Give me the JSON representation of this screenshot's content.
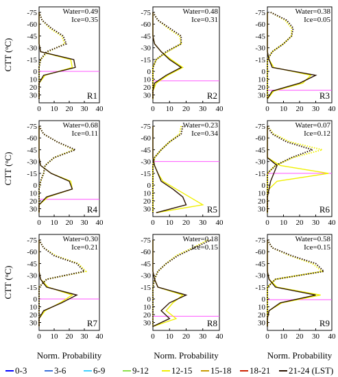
{
  "chart_data": {
    "type": "line",
    "ylabel_parts": [
      "CTT (",
      "o",
      "C)"
    ],
    "xlabel": "Norm. Probability",
    "levels": [
      -75,
      -65,
      -55,
      -45,
      -35,
      -25,
      -15,
      -5,
      5,
      15,
      25,
      35
    ],
    "xlim": [
      0,
      40
    ],
    "xticks": [
      0,
      10,
      20,
      30,
      40
    ],
    "ylim": [
      -82,
      40
    ],
    "yticks": [
      -75,
      -60,
      -45,
      -30,
      -15,
      0,
      10,
      20,
      30
    ],
    "ref_color": "#ff55ff",
    "legend": [
      {
        "name": "0-3",
        "color": "#0000ff"
      },
      {
        "name": "3-6",
        "color": "#3a6fd8"
      },
      {
        "name": "6-9",
        "color": "#40d0ff"
      },
      {
        "name": "9-12",
        "color": "#8ce04a"
      },
      {
        "name": "12-15",
        "color": "#f0f000"
      },
      {
        "name": "15-18",
        "color": "#c89a00"
      },
      {
        "name": "18-21",
        "color": "#cc2200"
      },
      {
        "name": "21-24 (LST)",
        "color": "#2a1200"
      }
    ],
    "panels": [
      {
        "label": "R1",
        "water_label": "Water=0.49",
        "ice_label": "Ice=0.35",
        "ref_line": 0,
        "series": [
          {
            "name": "12-15",
            "color": "#f0f000",
            "water": [
              0,
              0,
              0,
              0,
              0,
              1,
              21,
              22,
              4,
              0,
              0,
              0
            ],
            "ice": [
              0,
              2,
              7,
              15,
              17,
              6,
              1,
              0,
              0,
              0,
              0,
              0
            ]
          },
          {
            "name": "21-24 (LST)",
            "color": "#2a1200",
            "water": [
              0,
              0,
              0,
              0,
              0,
              1,
              23,
              24,
              3,
              0,
              0,
              0
            ],
            "ice": [
              0,
              2,
              8,
              16,
              18,
              5,
              1,
              0,
              0,
              0,
              0,
              0
            ]
          }
        ]
      },
      {
        "label": "R2",
        "water_label": "Water=0.48",
        "ice_label": "Ice=0.31",
        "ref_line": 12,
        "series": [
          {
            "name": "12-15",
            "color": "#f0f000",
            "water": [
              0,
              0,
              0,
              0,
              1,
              5,
              11,
              18,
              9,
              2,
              0,
              0
            ],
            "ice": [
              0,
              3,
              9,
              16,
              17,
              9,
              2,
              0,
              0,
              0,
              0,
              0
            ]
          },
          {
            "name": "21-24 (LST)",
            "color": "#2a1200",
            "water": [
              0,
              0,
              0,
              0,
              1,
              5,
              10,
              17,
              8,
              1,
              0,
              0
            ],
            "ice": [
              0,
              3,
              10,
              17,
              17,
              8,
              2,
              0,
              0,
              0,
              0,
              0
            ]
          }
        ]
      },
      {
        "label": "R3",
        "water_label": "Water=0.38",
        "ice_label": "Ice=0.05",
        "ref_line": 24,
        "series": [
          {
            "name": "12-15",
            "color": "#f0f000",
            "water": [
              0,
              0,
              0,
              0,
              0,
              0,
              1,
              4,
              27,
              22,
              4,
              0
            ],
            "ice": [
              2,
              11,
              15,
              15,
              10,
              3,
              0,
              0,
              0,
              0,
              0,
              0
            ]
          },
          {
            "name": "21-24 (LST)",
            "color": "#2a1200",
            "water": [
              0,
              0,
              0,
              0,
              0,
              0,
              1,
              3,
              30,
              20,
              3,
              0
            ],
            "ice": [
              2,
              12,
              16,
              15,
              10,
              3,
              0,
              0,
              0,
              0,
              0,
              0
            ]
          }
        ]
      },
      {
        "label": "R4",
        "water_label": "Water=0.68",
        "ice_label": "Ice=0.11",
        "ref_line": 18,
        "series": [
          {
            "name": "12-15",
            "color": "#f0f000",
            "water": [
              0,
              0,
              0,
              0,
              0,
              1,
              8,
              21,
              22,
              6,
              0,
              0
            ],
            "ice": [
              0,
              3,
              12,
              23,
              10,
              4,
              3,
              1,
              0,
              0,
              0,
              0
            ]
          },
          {
            "name": "21-24 (LST)",
            "color": "#2a1200",
            "water": [
              0,
              0,
              0,
              0,
              0,
              1,
              8,
              20,
              22,
              5,
              0,
              0
            ],
            "ice": [
              0,
              3,
              12,
              24,
              10,
              4,
              3,
              1,
              0,
              0,
              0,
              0
            ]
          }
        ]
      },
      {
        "label": "R5",
        "water_label": "Water=0.23",
        "ice_label": "Ice=0.34",
        "ref_line": -30,
        "series": [
          {
            "name": "12-15",
            "color": "#f0f000",
            "water": [
              0,
              0,
              0,
              0,
              0,
              1,
              3,
              6,
              14,
              22,
              30,
              2
            ],
            "ice": [
              17,
              16,
              10,
              5,
              1,
              0,
              0,
              0,
              0,
              0,
              0,
              0
            ]
          },
          {
            "name": "21-24 (LST)",
            "color": "#2a1200",
            "water": [
              0,
              0,
              0,
              0,
              0,
              1,
              3,
              5,
              12,
              18,
              20,
              2
            ],
            "ice": [
              18,
              17,
              10,
              5,
              1,
              0,
              0,
              0,
              0,
              0,
              0,
              0
            ]
          }
        ]
      },
      {
        "label": "R6",
        "water_label": "Water=0.07",
        "ice_label": "Ice=0.12",
        "ref_line": -15,
        "series": [
          {
            "name": "12-15",
            "color": "#f0f000",
            "water": [
              0,
              0,
              0,
              0,
              0,
              8,
              38,
              6,
              1,
              0,
              0,
              0
            ],
            "ice": [
              0,
              4,
              14,
              34,
              16,
              5,
              0,
              0,
              0,
              0,
              0,
              0
            ]
          },
          {
            "name": "21-24 (LST)",
            "color": "#2a1200",
            "water": [
              0,
              0,
              0,
              0,
              0,
              6,
              4,
              2,
              1,
              0,
              0,
              0
            ],
            "ice": [
              0,
              3,
              12,
              28,
              15,
              5,
              0,
              0,
              0,
              0,
              0,
              0
            ]
          }
        ]
      },
      {
        "label": "R7",
        "water_label": "Water=0.30",
        "ice_label": "Ice=0.21",
        "ref_line": 0,
        "series": [
          {
            "name": "12-15",
            "color": "#f0f000",
            "water": [
              0,
              0,
              0,
              0,
              0,
              1,
              6,
              22,
              14,
              4,
              0,
              0
            ],
            "ice": [
              0,
              3,
              11,
              26,
              31,
              5,
              0,
              0,
              0,
              0,
              0,
              0
            ]
          },
          {
            "name": "21-24 (LST)",
            "color": "#2a1200",
            "water": [
              0,
              0,
              0,
              0,
              0,
              1,
              5,
              25,
              15,
              3,
              0,
              0
            ],
            "ice": [
              0,
              3,
              10,
              25,
              30,
              5,
              0,
              0,
              0,
              0,
              0,
              0
            ]
          }
        ]
      },
      {
        "label": "R8",
        "water_label": "Water=0.18",
        "ice_label": "Ice=0.15",
        "ref_line": 22,
        "series": [
          {
            "name": "12-15",
            "color": "#f0f000",
            "water": [
              0,
              0,
              0,
              0,
              0,
              1,
              3,
              18,
              12,
              8,
              14,
              0
            ],
            "ice": [
              33,
              24,
              14,
              8,
              3,
              1,
              0,
              0,
              0,
              0,
              0,
              0
            ]
          },
          {
            "name": "21-24 (LST)",
            "color": "#2a1200",
            "water": [
              0,
              0,
              0,
              0,
              0,
              1,
              3,
              20,
              10,
              5,
              10,
              0
            ],
            "ice": [
              35,
              25,
              15,
              8,
              3,
              1,
              0,
              0,
              0,
              0,
              0,
              0
            ]
          }
        ]
      },
      {
        "label": "R9",
        "water_label": "Water=0.58",
        "ice_label": "Ice=0.15",
        "ref_line": 1,
        "series": [
          {
            "name": "12-15",
            "color": "#f0f000",
            "water": [
              0,
              0,
              0,
              0,
              0,
              1,
              6,
              33,
              9,
              1,
              0,
              0
            ],
            "ice": [
              0,
              3,
              14,
              28,
              34,
              5,
              0,
              0,
              0,
              0,
              0,
              0
            ]
          },
          {
            "name": "21-24 (LST)",
            "color": "#2a1200",
            "water": [
              0,
              0,
              0,
              0,
              0,
              1,
              5,
              30,
              8,
              1,
              0,
              0
            ],
            "ice": [
              0,
              3,
              15,
              30,
              35,
              5,
              0,
              0,
              0,
              0,
              0,
              0
            ]
          }
        ]
      }
    ]
  }
}
